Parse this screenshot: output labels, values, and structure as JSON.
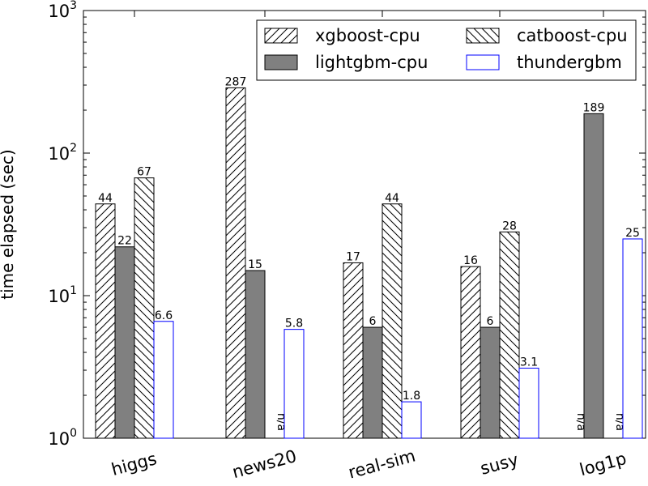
{
  "chart_data": {
    "type": "bar",
    "yscale": "log",
    "ylim": [
      1,
      1000
    ],
    "ylabel": "time elapsed (sec)",
    "xlabel": "",
    "title": "",
    "y_ticks": [
      {
        "value": 1,
        "base": "10",
        "exp": "0"
      },
      {
        "value": 10,
        "base": "10",
        "exp": "1"
      },
      {
        "value": 100,
        "base": "10",
        "exp": "2"
      },
      {
        "value": 1000,
        "base": "10",
        "exp": "3"
      }
    ],
    "categories": [
      "higgs",
      "news20",
      "real-sim",
      "susy",
      "log1p"
    ],
    "legend_position": "top-right",
    "series": [
      {
        "name": "xgboost-cpu",
        "style": "hatch-forward",
        "values": [
          44,
          287,
          17,
          16,
          null
        ],
        "labels": [
          "44",
          "287",
          "17",
          "16",
          "n/a"
        ]
      },
      {
        "name": "lightgbm-cpu",
        "style": "solid-gray",
        "values": [
          22,
          15,
          6,
          6,
          189
        ],
        "labels": [
          "22",
          "15",
          "6",
          "6",
          "189"
        ]
      },
      {
        "name": "catboost-cpu",
        "style": "hatch-back",
        "values": [
          67,
          null,
          44,
          28,
          null
        ],
        "labels": [
          "67",
          "n/a",
          "44",
          "28",
          "n/a"
        ]
      },
      {
        "name": "thundergbm",
        "style": "outline-blue",
        "values": [
          6.6,
          5.8,
          1.8,
          3.1,
          25
        ],
        "labels": [
          "6.6",
          "5.8",
          "1.8",
          "3.1",
          "25"
        ]
      }
    ],
    "colors": {
      "gray_fill": "#808080",
      "blue_edge": "#0000ff",
      "black": "#000000"
    }
  }
}
